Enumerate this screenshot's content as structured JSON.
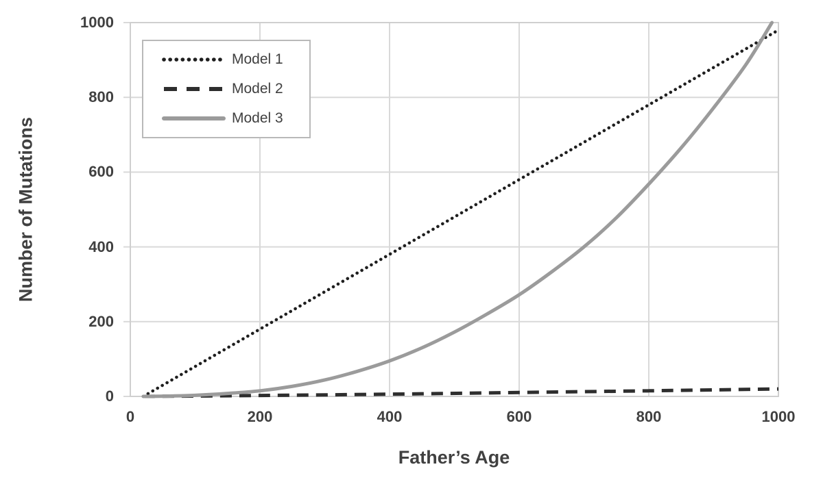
{
  "chart_data": {
    "type": "line",
    "title": "",
    "xlabel": "Father’s Age",
    "ylabel": "Number of Mutations",
    "xlim": [
      0,
      1000
    ],
    "ylim": [
      0,
      1000
    ],
    "x_ticks": [
      0,
      200,
      400,
      600,
      800,
      1000
    ],
    "y_ticks": [
      0,
      200,
      400,
      600,
      800,
      1000
    ],
    "grid": true,
    "legend_position": "top-left",
    "colors": {
      "grid": "#d9d9d9",
      "plot_border": "#cfcfcf",
      "text": "#404040",
      "background": "#ffffff"
    },
    "series": [
      {
        "name": "Model 1",
        "line_style": "dotted",
        "color": "#1f1f1f",
        "points": [
          [
            20,
            0
          ],
          [
            1000,
            980
          ]
        ]
      },
      {
        "name": "Model 2",
        "line_style": "dashed",
        "color": "#2e2e2e",
        "points": [
          [
            20,
            0
          ],
          [
            200,
            2.5
          ],
          [
            400,
            6
          ],
          [
            600,
            10.5
          ],
          [
            800,
            15
          ],
          [
            1000,
            20
          ]
        ]
      },
      {
        "name": "Model 3",
        "line_style": "solid",
        "color": "#9b9b9b",
        "points": [
          [
            20,
            0
          ],
          [
            60,
            1
          ],
          [
            100,
            3
          ],
          [
            150,
            8
          ],
          [
            200,
            15
          ],
          [
            250,
            27
          ],
          [
            300,
            44
          ],
          [
            350,
            67
          ],
          [
            400,
            95
          ],
          [
            450,
            130
          ],
          [
            500,
            172
          ],
          [
            550,
            220
          ],
          [
            600,
            272
          ],
          [
            650,
            333
          ],
          [
            700,
            400
          ],
          [
            750,
            478
          ],
          [
            800,
            568
          ],
          [
            850,
            665
          ],
          [
            900,
            772
          ],
          [
            950,
            888
          ],
          [
            990,
            1000
          ]
        ]
      }
    ]
  }
}
